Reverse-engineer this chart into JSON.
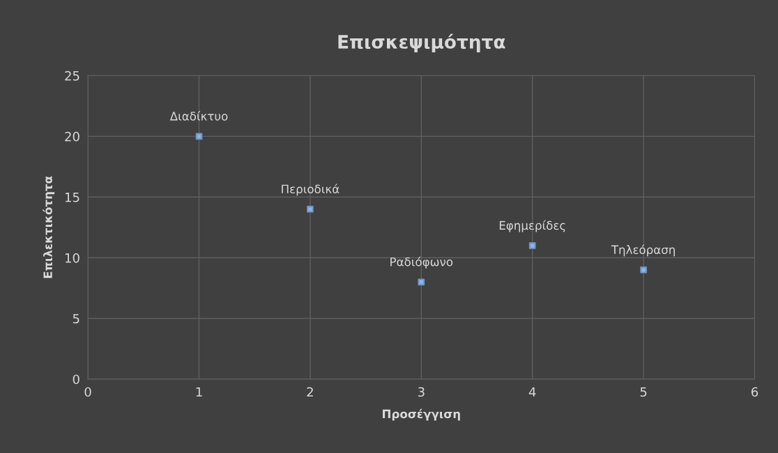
{
  "chart_data": {
    "type": "scatter",
    "title": "Επισκεψιμότητα",
    "xlabel": "Προσέγγιση",
    "ylabel": "Επιλεκτικότητα",
    "x": [
      1,
      2,
      3,
      4,
      5
    ],
    "series": [
      {
        "color": "#8fb4e3",
        "values": [
          20,
          14,
          8,
          11,
          9
        ]
      }
    ],
    "annotations": [
      {
        "text": "Διαδίκτυο",
        "x": 1,
        "y": 20
      },
      {
        "text": "Περιοδικά",
        "x": 2,
        "y": 14
      },
      {
        "text": "Ραδιόφωνο",
        "x": 3,
        "y": 8
      },
      {
        "text": "Εφημερίδες",
        "x": 4,
        "y": 11
      },
      {
        "text": "Τηλεόραση",
        "x": 5,
        "y": 9
      }
    ],
    "xlim": [
      0,
      6
    ],
    "ylim": [
      0,
      25
    ],
    "xticks": [
      0,
      1,
      2,
      3,
      4,
      5,
      6
    ],
    "yticks": [
      0,
      5,
      10,
      15,
      20,
      25
    ],
    "grid": true,
    "marker": "square",
    "legend": false
  }
}
